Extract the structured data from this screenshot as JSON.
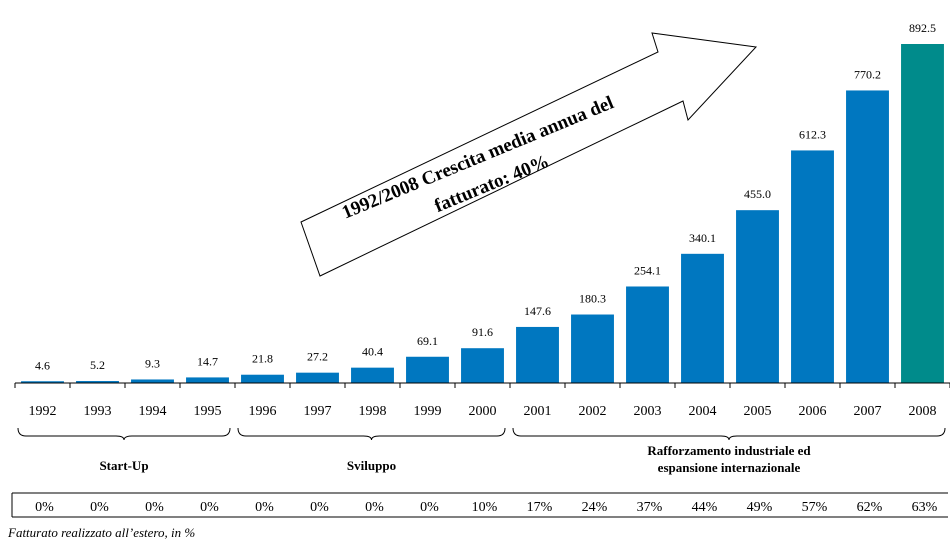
{
  "chart_data": {
    "type": "bar",
    "categories": [
      "1992",
      "1993",
      "1994",
      "1995",
      "1996",
      "1997",
      "1998",
      "1999",
      "2000",
      "2001",
      "2002",
      "2003",
      "2004",
      "2005",
      "2006",
      "2007",
      "2008"
    ],
    "values": [
      4.6,
      5.2,
      9.3,
      14.7,
      21.8,
      27.2,
      40.4,
      69.1,
      91.6,
      147.6,
      180.3,
      254.1,
      340.1,
      455.0,
      612.3,
      770.2,
      892.5
    ],
    "value_labels": [
      "4.6",
      "5.2",
      "9.3",
      "14.7",
      "21.8",
      "27.2",
      "40.4",
      "69.1",
      "91.6",
      "147.6",
      "180.3",
      "254.1",
      "340.1",
      "455.0",
      "612.3",
      "770.2",
      "892.5"
    ],
    "ylim": [
      0,
      900
    ],
    "grid": false,
    "colors": {
      "bar": "#0077C0",
      "highlight": "#008B8B"
    },
    "highlight_index": 16,
    "arrow_text": [
      "1992/2008 Crescita media annua del",
      "fatturato: 40%"
    ],
    "phases": [
      {
        "label": [
          "Start-Up"
        ],
        "from": 0,
        "to": 3
      },
      {
        "label": [
          "Sviluppo"
        ],
        "from": 4,
        "to": 8
      },
      {
        "label": [
          "Rafforzamento industriale ed",
          "espansione internazionale"
        ],
        "from": 9,
        "to": 16
      }
    ],
    "foreign_share": [
      "0%",
      "0%",
      "0%",
      "0%",
      "0%",
      "0%",
      "0%",
      "0%",
      "10%",
      "17%",
      "24%",
      "37%",
      "44%",
      "49%",
      "57%",
      "62%",
      "63%"
    ],
    "footnote": "Fatturato realizzato all’estero, in %"
  }
}
